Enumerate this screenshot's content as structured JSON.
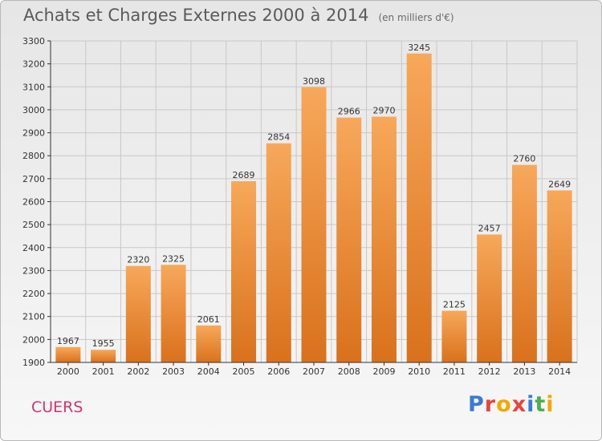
{
  "title": "Achats et Charges Externes 2000 à 2014",
  "subtitle": "(en milliers d'€)",
  "location": "CUERS",
  "logo": {
    "letters": [
      "P",
      "r",
      "o",
      "x",
      "i",
      "t",
      "i"
    ],
    "colors": [
      "#3a7bd5",
      "#e8453c",
      "#f2a900",
      "#e8453c",
      "#3a7bd5",
      "#4caf50",
      "#f2a900"
    ]
  },
  "colors": {
    "bar_top": "#f7a85a",
    "bar_bottom": "#d9711c",
    "grid": "#c8c8c8",
    "axis": "#333333",
    "text": "#333333"
  },
  "chart_data": {
    "type": "bar",
    "categories": [
      "2000",
      "2001",
      "2002",
      "2003",
      "2004",
      "2005",
      "2006",
      "2007",
      "2008",
      "2009",
      "2010",
      "2011",
      "2012",
      "2013",
      "2014"
    ],
    "values": [
      1967,
      1955,
      2320,
      2325,
      2061,
      2689,
      2854,
      3098,
      2966,
      2970,
      3245,
      2125,
      2457,
      2760,
      2649
    ],
    "ylim": [
      1900,
      3300
    ],
    "yticks": [
      1900,
      2000,
      2100,
      2200,
      2300,
      2400,
      2500,
      2600,
      2700,
      2800,
      2900,
      3000,
      3100,
      3200,
      3300
    ],
    "grid": true,
    "data_labels": true
  }
}
